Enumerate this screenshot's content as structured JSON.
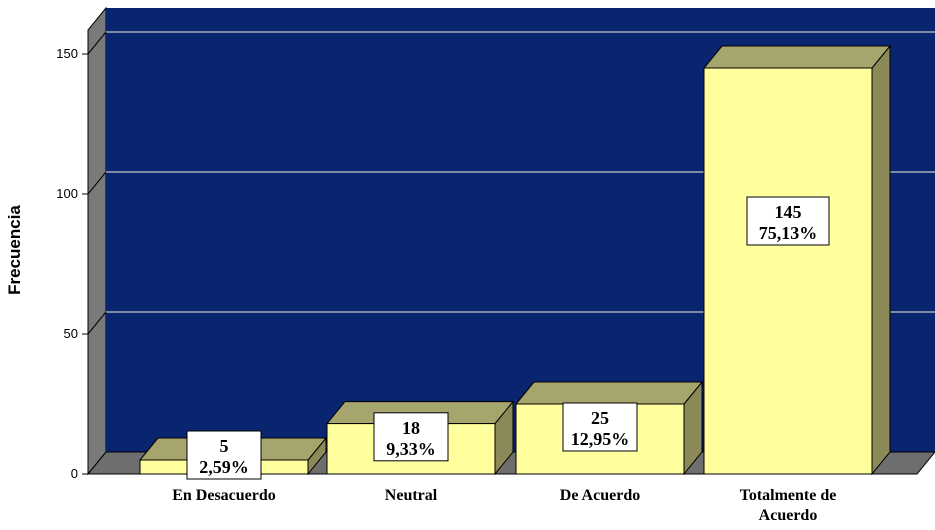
{
  "chart_data": {
    "type": "bar",
    "categories": [
      "En Desacuerdo",
      "Neutral",
      "De Acuerdo",
      "Totalmente de Acuerdo"
    ],
    "category_lines": [
      [
        "En Desacuerdo"
      ],
      [
        "Neutral"
      ],
      [
        "De Acuerdo"
      ],
      [
        "Totalmente de",
        "Acuerdo"
      ]
    ],
    "values": [
      5,
      18,
      25,
      145
    ],
    "percent_labels": [
      "2,59%",
      "9,33%",
      "12,95%",
      "75,13%"
    ],
    "title": "",
    "xlabel": "",
    "ylabel": "Frecuencia",
    "ylim": [
      0,
      160
    ],
    "yticks": [
      0,
      50,
      100,
      150
    ],
    "ytick_labels": [
      "0",
      "50",
      "100",
      "150"
    ],
    "grid": true,
    "colors": {
      "plot_background": "#0a2570",
      "bar_front": "#ffff9e",
      "bar_top": "#a7a56e",
      "bar_side": "#8b8957",
      "floor": "#6e6e6e",
      "wall_left": "#7a7a7a",
      "gridline": "#c8c8c8",
      "label_box": "#ffffff"
    }
  }
}
